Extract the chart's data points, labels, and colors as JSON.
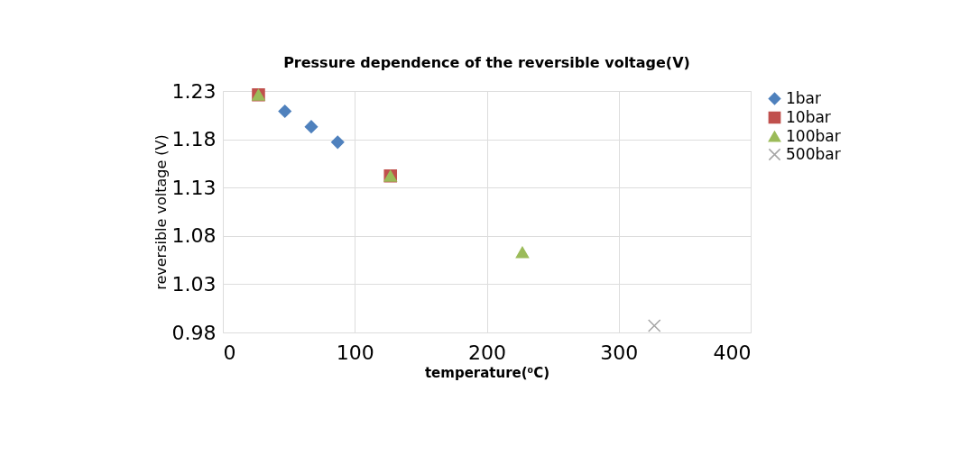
{
  "chart_data": {
    "type": "scatter",
    "title": "Pressure dependence of the reversible voltage(V)",
    "xlabel": "temperature(⁰C)",
    "ylabel": "reversible voltage (V)",
    "xlim": [
      0,
      400
    ],
    "xticks": [
      0,
      100,
      200,
      300,
      400
    ],
    "ylim": [
      0.98,
      1.23
    ],
    "yticks": [
      0.98,
      1.03,
      1.08,
      1.13,
      1.18,
      1.23
    ],
    "grid": true,
    "legend": "right",
    "series": [
      {
        "name": "1bar",
        "color": "#4f81bd",
        "marker": "diamond",
        "x": [
          47,
          67,
          87
        ],
        "values": [
          1.209,
          1.193,
          1.177
        ]
      },
      {
        "name": "10bar",
        "color": "#c0504d",
        "marker": "square",
        "x": [
          27,
          127
        ],
        "values": [
          1.226,
          1.142
        ]
      },
      {
        "name": "100bar",
        "color": "#9bbb59",
        "marker": "triangle",
        "x": [
          27,
          127,
          227
        ],
        "values": [
          1.226,
          1.142,
          1.063
        ]
      },
      {
        "name": "500bar",
        "color": "#a5a5a5",
        "marker": "cross",
        "x": [
          327
        ],
        "values": [
          0.987
        ]
      }
    ]
  }
}
